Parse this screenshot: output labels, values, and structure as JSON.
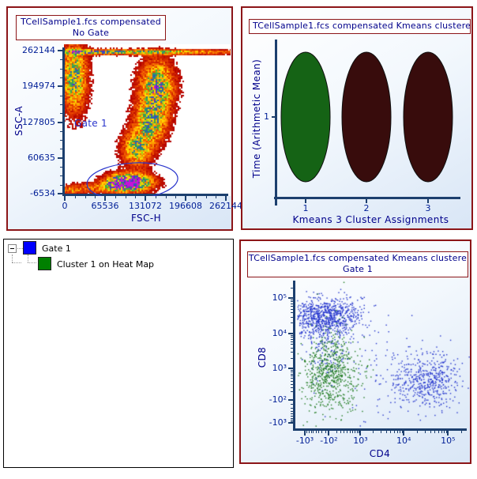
{
  "colors": {
    "panel_border": "#8c1518",
    "title_text": "#00008b",
    "axis_line": "#1c3f6e",
    "tick_text": "#001e96",
    "gate_outline": "#2a35cc",
    "point_blue": "#2233cc",
    "point_green": "#1e7a1e",
    "tree_swatch_blue": "#0000ff",
    "tree_swatch_green": "#008000"
  },
  "tree": {
    "items": [
      {
        "label": "Gate 1",
        "swatch": "#0000ff",
        "expanded": true,
        "level": 0
      },
      {
        "label": "Cluster 1 on Heat Map",
        "swatch": "#008000",
        "level": 1
      }
    ]
  },
  "chart_data": [
    {
      "type": "heatmap",
      "title": "TCellSample1.fcs compensated",
      "subtitle": "No Gate",
      "xlabel": "FSC-H",
      "ylabel": "SSC-A",
      "xlim": [
        0,
        262144
      ],
      "ylim": [
        -6534,
        262144
      ],
      "xticks": [
        0,
        65536,
        131072,
        196608,
        262144
      ],
      "yticks": [
        262144,
        194974,
        127805,
        60635,
        -6534
      ],
      "minor_per_interval": 3,
      "grid": false,
      "gate": {
        "label": "Gate 1",
        "shape": "ellipse",
        "center": [
          110000,
          17000
        ],
        "rx": 74000,
        "ry": 34000,
        "rotation_deg": -4,
        "color": "#2a35cc"
      },
      "populations": [
        {
          "cx": 15000,
          "cy": 213000,
          "sx": 13000,
          "sy": 42000,
          "amp": 0.62
        },
        {
          "cx": 131072,
          "cy": 260800,
          "sx": 110000,
          "sy": 3200,
          "amp": 0.5
        },
        {
          "cx": 40000,
          "cy": 260800,
          "sx": 40000,
          "sy": 3000,
          "amp": 0.28
        },
        {
          "cx": 149000,
          "cy": 198000,
          "sx": 18000,
          "sy": 30000,
          "amp": 0.66
        },
        {
          "cx": 139000,
          "cy": 131500,
          "sx": 17000,
          "sy": 27000,
          "amp": 0.6
        },
        {
          "cx": 116000,
          "cy": 79500,
          "sx": 15500,
          "sy": 21000,
          "amp": 0.55
        },
        {
          "cx": 106500,
          "cy": 15700,
          "sx": 22000,
          "sy": 11000,
          "amp": 1.05
        },
        {
          "cx": 83500,
          "cy": 12800,
          "sx": 15500,
          "sy": 9000,
          "amp": 0.5
        },
        {
          "cx": 38500,
          "cy": 5300,
          "sx": 23000,
          "sy": 6000,
          "amp": 0.3
        },
        {
          "cx": 6400,
          "cy": 900,
          "sx": 10000,
          "sy": 4500,
          "amp": 0.28
        }
      ],
      "colormap": [
        [
          0.05,
          "#b30000"
        ],
        [
          0.2,
          "#e84300"
        ],
        [
          0.36,
          "#ff9a00"
        ],
        [
          0.5,
          "#ffe800"
        ],
        [
          0.62,
          "#4db82e"
        ],
        [
          0.74,
          "#237f86"
        ],
        [
          0.84,
          "#2f55c9"
        ],
        [
          0.93,
          "#6a1fbf"
        ],
        [
          1.0,
          "#c712d6"
        ]
      ],
      "density_threshold": 0.05
    },
    {
      "type": "scatter",
      "subtype": "cluster-mean-ellipses",
      "title": "TCellSample1.fcs compensated Kmeans clustere",
      "xlabel": "Kmeans 3 Cluster Assignments",
      "ylabel": "Time (Arithmetic Mean)",
      "xticks": [
        "1",
        "2",
        "3"
      ],
      "yticks": [
        "1"
      ],
      "grid": false,
      "ellipses": [
        {
          "x": 1,
          "y": 1,
          "fill": "#156315",
          "name": "cluster-1"
        },
        {
          "x": 2,
          "y": 1,
          "fill": "#380c0c",
          "name": "cluster-2"
        },
        {
          "x": 3,
          "y": 1,
          "fill": "#380c0c",
          "name": "cluster-3"
        }
      ]
    },
    {
      "type": "scatter",
      "title": "TCellSample1.fcs compensated Kmeans clustere",
      "subtitle": "Gate 1",
      "xlabel": "CD4",
      "ylabel": "CD8",
      "xscale": {
        "type": "asinh",
        "cofactor": 500,
        "min": -1700,
        "max": 264000
      },
      "yscale": {
        "type": "asinh",
        "cofactor": 350,
        "min": -1430,
        "max": 280000
      },
      "xticks": [
        {
          "v": -1000,
          "label": "-10³"
        },
        {
          "v": -100,
          "label": "-10²"
        },
        {
          "v": 1000,
          "label": "10³"
        },
        {
          "v": 10000,
          "label": "10⁴"
        },
        {
          "v": 100000,
          "label": "10⁵"
        }
      ],
      "yticks": [
        {
          "v": 100000,
          "label": "10⁵"
        },
        {
          "v": 10000,
          "label": "10⁴"
        },
        {
          "v": 1000,
          "label": "10³"
        },
        {
          "v": -100,
          "label": "-10²"
        },
        {
          "v": -1000,
          "label": "-10³"
        }
      ],
      "grid": false,
      "clusters": [
        {
          "name": "CD8-positive",
          "color": "#2233cc",
          "cd4": -230,
          "cd8": 31000,
          "sx": 0.95,
          "sy": 0.62,
          "n": 850
        },
        {
          "name": "CD8-tail",
          "color": "#2233cc",
          "cd4": -210,
          "cd8": 4500,
          "sx": 0.6,
          "sy": 1.1,
          "n": 120
        },
        {
          "name": "double-neg",
          "color": "#1e7a1e",
          "cd4": -80,
          "cd8": 760,
          "sx": 0.7,
          "sy": 1.25,
          "n": 600
        },
        {
          "name": "double-neg-halo",
          "color": "#1e7a1e",
          "cd4": -90,
          "cd8": 600,
          "sx": 1.2,
          "sy": 2.0,
          "n": 80
        },
        {
          "name": "CD4-positive",
          "color": "#2233cc",
          "cd4": 23000,
          "cd8": 400,
          "sx": 1.05,
          "sy": 0.95,
          "n": 340
        },
        {
          "name": "CD4-core",
          "color": "#2233cc",
          "cd4": 52000,
          "cd8": 420,
          "sx": 0.5,
          "sy": 0.85,
          "n": 150
        },
        {
          "name": "sparse-noise",
          "color": "#2233cc",
          "cd4": 1500,
          "cd8": 1200,
          "sx": 2.4,
          "sy": 1.8,
          "n": 90
        }
      ]
    }
  ]
}
